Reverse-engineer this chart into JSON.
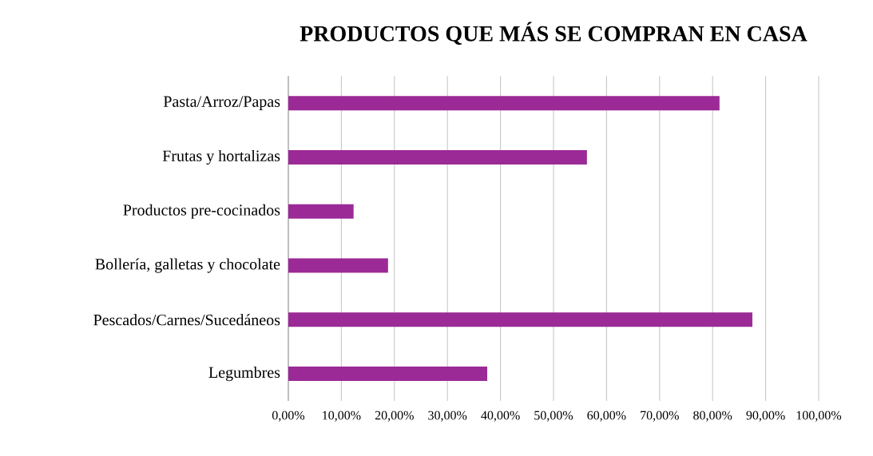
{
  "chart_data": {
    "type": "bar",
    "orientation": "horizontal",
    "title": "PRODUCTOS QUE MÁS SE COMPRAN EN CASA",
    "categories": [
      "Pasta/Arroz/Papas",
      "Frutas y hortalizas",
      "Productos pre-cocinados",
      "Bollería, galletas y chocolate",
      "Pescados/Carnes/Sucedáneos",
      "Legumbres"
    ],
    "values": [
      81.3,
      56.3,
      12.3,
      18.8,
      87.5,
      37.5
    ],
    "color": "#9b2a96",
    "xlim": [
      0,
      100
    ],
    "xticks": [
      {
        "value": 0,
        "label": "0,00%"
      },
      {
        "value": 10,
        "label": "10,00%"
      },
      {
        "value": 20,
        "label": "20,00%"
      },
      {
        "value": 30,
        "label": "30,00%"
      },
      {
        "value": 40,
        "label": "40,00%"
      },
      {
        "value": 50,
        "label": "50,00%"
      },
      {
        "value": 60,
        "label": "60,00%"
      },
      {
        "value": 70,
        "label": "70,00%"
      },
      {
        "value": 80,
        "label": "80,00%"
      },
      {
        "value": 90,
        "label": "90,00%"
      },
      {
        "value": 100,
        "label": "100,00%"
      }
    ],
    "grid": "x"
  }
}
